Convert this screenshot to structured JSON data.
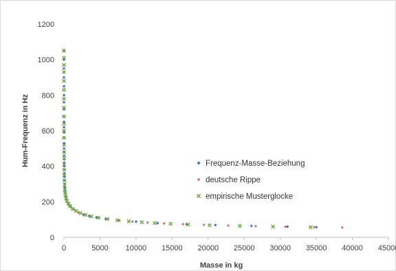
{
  "chart_data": {
    "type": "scatter",
    "title": "",
    "xlabel": "Masse in kg",
    "ylabel": "Hum-Frequenz in Hz",
    "xlim": [
      0,
      45000
    ],
    "ylim": [
      0,
      1200
    ],
    "xticks": [
      0,
      5000,
      10000,
      15000,
      20000,
      25000,
      30000,
      35000,
      40000,
      45000
    ],
    "yticks": [
      0,
      200,
      400,
      600,
      800,
      1000,
      1200
    ],
    "grid": false,
    "legend_position": "right",
    "series": [
      {
        "name": "Frequenz-Masse-Beziehung",
        "marker": "diamond",
        "color": "#4472c4",
        "points": [
          [
            2,
            1050
          ],
          [
            3,
            1000
          ],
          [
            3,
            950
          ],
          [
            4,
            900
          ],
          [
            5,
            850
          ],
          [
            5,
            800
          ],
          [
            6,
            760
          ],
          [
            7,
            720
          ],
          [
            8,
            680
          ],
          [
            10,
            650
          ],
          [
            11,
            620
          ],
          [
            13,
            590
          ],
          [
            15,
            560
          ],
          [
            17,
            530
          ],
          [
            20,
            500
          ],
          [
            23,
            480
          ],
          [
            26,
            460
          ],
          [
            30,
            440
          ],
          [
            35,
            420
          ],
          [
            40,
            400
          ],
          [
            47,
            380
          ],
          [
            55,
            360
          ],
          [
            65,
            340
          ],
          [
            77,
            320
          ],
          [
            92,
            300
          ],
          [
            120,
            280
          ],
          [
            150,
            265
          ],
          [
            200,
            250
          ],
          [
            280,
            230
          ],
          [
            400,
            210
          ],
          [
            550,
            195
          ],
          [
            750,
            180
          ],
          [
            1000,
            170
          ],
          [
            1400,
            155
          ],
          [
            2000,
            140
          ],
          [
            2700,
            128
          ],
          [
            3500,
            120
          ],
          [
            4500,
            112
          ],
          [
            5800,
            104
          ],
          [
            7500,
            96
          ],
          [
            10000,
            88
          ],
          [
            13000,
            80
          ],
          [
            17000,
            74
          ],
          [
            21000,
            69
          ],
          [
            26000,
            64
          ],
          [
            31000,
            60
          ],
          [
            35000,
            57
          ]
        ]
      },
      {
        "name": "deutsche Rippe",
        "marker": "dot",
        "color": "#e06666",
        "points": [
          [
            100,
            290
          ],
          [
            200,
            250
          ],
          [
            400,
            210
          ],
          [
            700,
            185
          ],
          [
            1000,
            170
          ],
          [
            1500,
            155
          ],
          [
            2000,
            140
          ],
          [
            2800,
            128
          ],
          [
            3700,
            118
          ],
          [
            4800,
            110
          ],
          [
            6100,
            102
          ],
          [
            7700,
            95
          ],
          [
            9500,
            89
          ],
          [
            11600,
            83
          ],
          [
            13900,
            78
          ],
          [
            16500,
            74
          ],
          [
            19400,
            70
          ],
          [
            22800,
            66
          ],
          [
            26600,
            63
          ],
          [
            30700,
            60
          ],
          [
            34700,
            57
          ],
          [
            38600,
            55
          ]
        ]
      },
      {
        "name": "empirische Musterglocke",
        "marker": "x",
        "color": "#70ad47",
        "points": [
          [
            5,
            1050
          ],
          [
            6,
            1010
          ],
          [
            7,
            970
          ],
          [
            8,
            930
          ],
          [
            9,
            880
          ],
          [
            10,
            830
          ],
          [
            12,
            780
          ],
          [
            14,
            730
          ],
          [
            16,
            680
          ],
          [
            18,
            640
          ],
          [
            21,
            600
          ],
          [
            24,
            560
          ],
          [
            28,
            520
          ],
          [
            32,
            480
          ],
          [
            37,
            445
          ],
          [
            43,
            410
          ],
          [
            50,
            380
          ],
          [
            60,
            350
          ],
          [
            72,
            320
          ],
          [
            90,
            295
          ],
          [
            120,
            270
          ],
          [
            160,
            250
          ],
          [
            220,
            235
          ],
          [
            300,
            220
          ],
          [
            420,
            205
          ],
          [
            600,
            190
          ],
          [
            850,
            175
          ],
          [
            1200,
            160
          ],
          [
            1700,
            148
          ],
          [
            2300,
            136
          ],
          [
            3000,
            126
          ],
          [
            3800,
            118
          ],
          [
            4800,
            110
          ],
          [
            6000,
            103
          ],
          [
            7400,
            96
          ],
          [
            9000,
            90
          ],
          [
            10800,
            85
          ],
          [
            12600,
            80
          ],
          [
            14800,
            76
          ],
          [
            17200,
            72
          ],
          [
            20200,
            68
          ],
          [
            24400,
            64
          ],
          [
            29000,
            60
          ],
          [
            34200,
            57
          ]
        ]
      }
    ]
  }
}
